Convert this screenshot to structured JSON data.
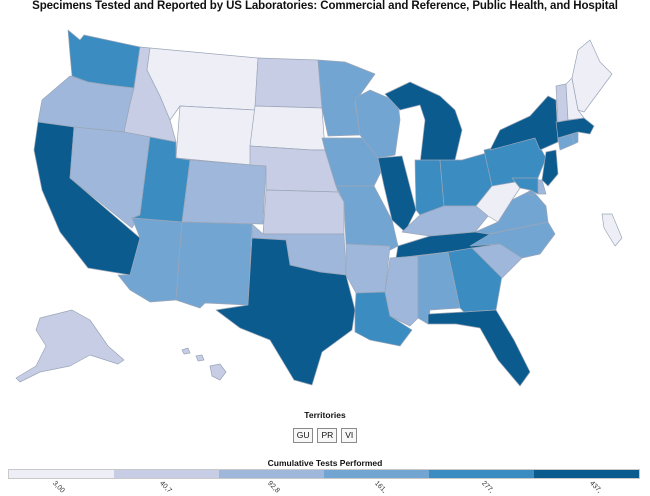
{
  "title": "Specimens Tested and Reported by US Laboratories: Commercial and Reference, Public Health, and Hospital",
  "territories": {
    "title": "Territories",
    "buttons": [
      "GU",
      "PR",
      "VI"
    ]
  },
  "legend": {
    "title": "Cumulative Tests Performed",
    "bins": [
      {
        "label": "3,00",
        "color": "#eeeef7"
      },
      {
        "label": "40,7",
        "color": "#c6cde4"
      },
      {
        "label": "92,8",
        "color": "#9fb7da"
      },
      {
        "label": "161,",
        "color": "#73a5d2"
      },
      {
        "label": "277,",
        "color": "#3a8cc1"
      },
      {
        "label": "437,",
        "color": "#0b5b8e"
      }
    ]
  },
  "states": {
    "WA": 4,
    "OR": 2,
    "CA": 5,
    "ID": 1,
    "NV": 2,
    "MT": 0,
    "WY": 0,
    "UT": 4,
    "AZ": 3,
    "CO": 2,
    "NM": 3,
    "ND": 1,
    "SD": 0,
    "NE": 1,
    "KS": 1,
    "OK": 2,
    "TX": 5,
    "MN": 3,
    "IA": 3,
    "MO": 3,
    "AR": 2,
    "LA": 4,
    "WI": 3,
    "IL": 5,
    "MI": 5,
    "IN": 4,
    "OH": 4,
    "KY": 2,
    "TN": 5,
    "MS": 2,
    "AL": 3,
    "GA": 4,
    "FL": 5,
    "SC": 2,
    "NC": 3,
    "VA": 3,
    "WV": 0,
    "PA": 4,
    "NY": 5,
    "VT": 1,
    "NH": 0,
    "ME": 0,
    "MA": 5,
    "RI": 3,
    "CT": 3,
    "NJ": 5,
    "DE": 2,
    "MD": 4,
    "DC": 3,
    "AK": 1,
    "HI": 1
  }
}
